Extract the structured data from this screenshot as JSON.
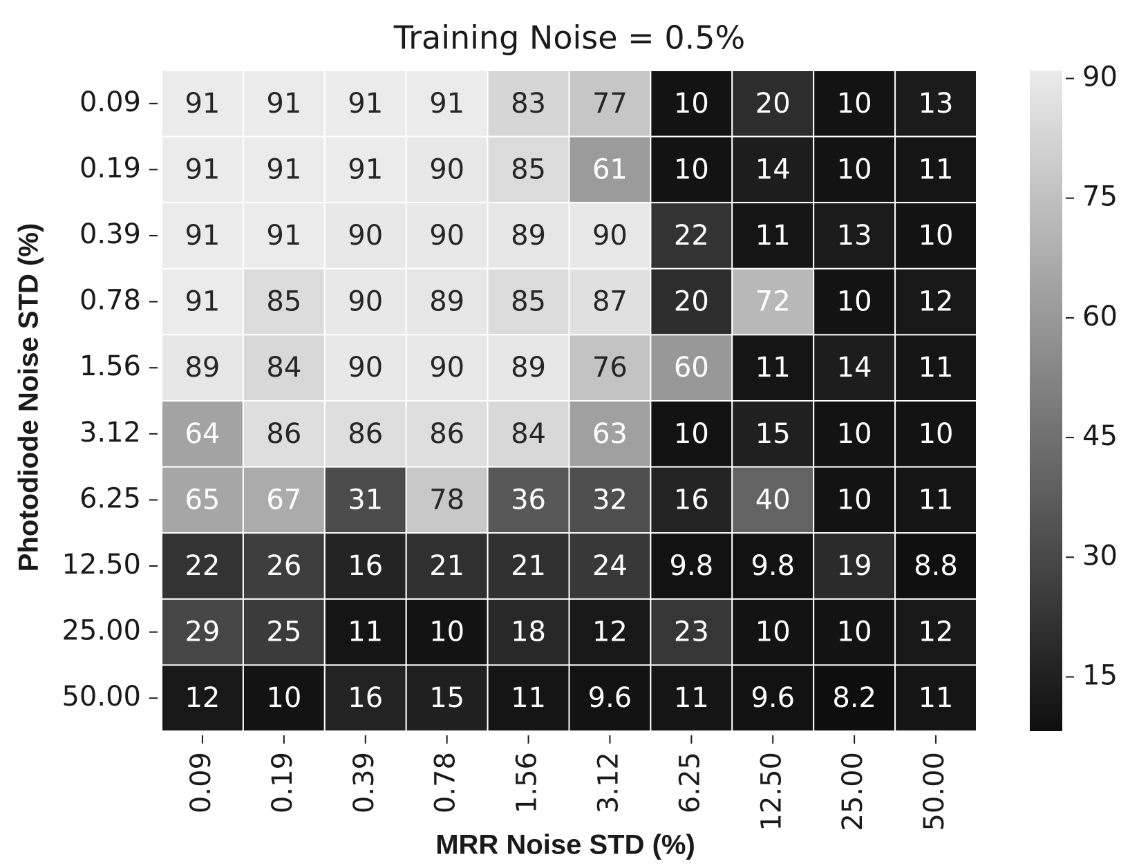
{
  "chart_data": {
    "type": "heatmap",
    "title": "Training Noise = 0.5%",
    "x_label": "MRR Noise STD (%)",
    "y_label": "Photodiode Noise STD (%)",
    "x": [
      "0.09",
      "0.19",
      "0.39",
      "0.78",
      "1.56",
      "3.12",
      "6.25",
      "12.50",
      "25.00",
      "50.00"
    ],
    "y": [
      "0.09",
      "0.19",
      "0.39",
      "0.78",
      "1.56",
      "3.12",
      "6.25",
      "12.50",
      "25.00",
      "50.00"
    ],
    "values": [
      [
        91,
        91,
        91,
        91,
        83,
        77,
        10,
        20,
        10,
        13
      ],
      [
        91,
        91,
        91,
        90,
        85,
        61,
        10,
        14,
        10,
        11
      ],
      [
        91,
        91,
        90,
        90,
        89,
        90,
        22,
        11,
        13,
        10
      ],
      [
        91,
        85,
        90,
        89,
        85,
        87,
        20,
        72,
        10,
        12
      ],
      [
        89,
        84,
        90,
        90,
        89,
        76,
        60,
        11,
        14,
        11
      ],
      [
        64,
        86,
        86,
        86,
        84,
        63,
        10,
        15,
        10,
        10
      ],
      [
        65,
        67,
        31,
        78,
        36,
        32,
        16,
        40,
        10,
        11
      ],
      [
        22,
        26,
        16,
        21,
        21,
        24,
        9.8,
        9.8,
        19,
        8.8
      ],
      [
        29,
        25,
        11,
        10,
        18,
        12,
        23,
        10,
        10,
        12
      ],
      [
        12,
        10,
        16,
        15,
        11,
        9.6,
        11,
        9.6,
        8.2,
        11
      ]
    ],
    "colormap": "gray",
    "zlim": [
      8.2,
      91
    ],
    "zticks": [
      15,
      30,
      45,
      60,
      75,
      90
    ]
  }
}
